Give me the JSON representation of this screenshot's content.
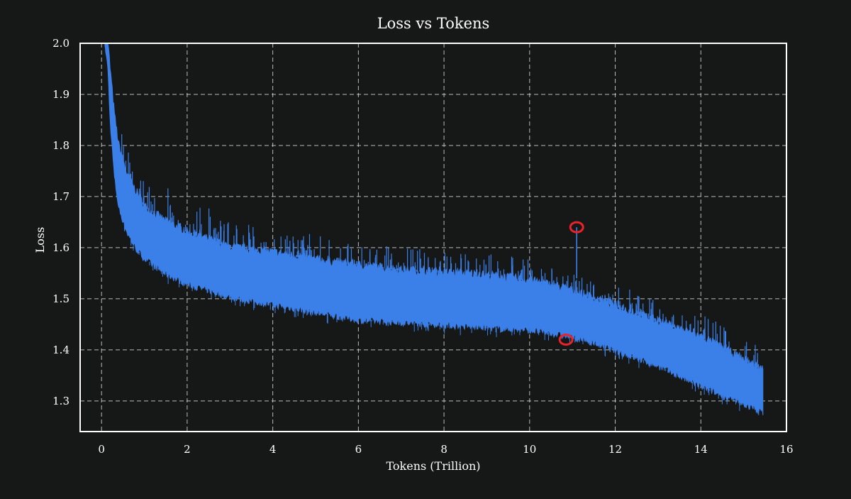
{
  "chart_data": {
    "type": "line",
    "title": "Loss vs Tokens",
    "xlabel": "Tokens (Trillion)",
    "ylabel": "Loss",
    "xlim": [
      -0.5,
      16
    ],
    "ylim": [
      1.24,
      2.0
    ],
    "xticks": [
      0,
      2,
      4,
      6,
      8,
      10,
      12,
      14,
      16
    ],
    "xtick_labels": [
      "0",
      "2",
      "4",
      "6",
      "8",
      "10",
      "12",
      "14",
      "16"
    ],
    "yticks": [
      1.3,
      1.4,
      1.5,
      1.6,
      1.7,
      1.8,
      1.9,
      2.0
    ],
    "ytick_labels": [
      "1.3",
      "1.4",
      "1.5",
      "1.6",
      "1.7",
      "1.8",
      "1.9",
      "2.0"
    ],
    "grid": true,
    "series": [
      {
        "name": "loss",
        "color": "#3b7fe8",
        "x": [
          0.08,
          0.15,
          0.2,
          0.3,
          0.4,
          0.6,
          0.8,
          1.0,
          1.5,
          2.0,
          3.0,
          4.0,
          5.0,
          6.0,
          7.0,
          8.0,
          9.0,
          10.0,
          10.8,
          11.5,
          12.0,
          13.0,
          14.0,
          15.0,
          15.45
        ],
        "lower": [
          2.0,
          1.95,
          1.85,
          1.74,
          1.68,
          1.63,
          1.6,
          1.58,
          1.55,
          1.53,
          1.505,
          1.49,
          1.475,
          1.46,
          1.455,
          1.45,
          1.445,
          1.44,
          1.43,
          1.415,
          1.4,
          1.37,
          1.33,
          1.295,
          1.28
        ],
        "upper": [
          2.0,
          2.0,
          1.95,
          1.86,
          1.8,
          1.74,
          1.71,
          1.68,
          1.65,
          1.63,
          1.6,
          1.59,
          1.575,
          1.565,
          1.555,
          1.55,
          1.545,
          1.535,
          1.52,
          1.5,
          1.485,
          1.455,
          1.425,
          1.38,
          1.36
        ],
        "spike_max": [
          2.0,
          2.0,
          2.0,
          1.92,
          1.85,
          1.8,
          1.76,
          1.74,
          1.72,
          1.69,
          1.665,
          1.64,
          1.625,
          1.61,
          1.6,
          1.595,
          1.59,
          1.58,
          1.56,
          1.54,
          1.53,
          1.5,
          1.47,
          1.43,
          1.41
        ]
      }
    ],
    "annotations": [
      {
        "type": "circle",
        "x": 11.1,
        "y": 1.64,
        "color": "#e8232a",
        "label": "spike"
      },
      {
        "type": "circle",
        "x": 10.85,
        "y": 1.42,
        "color": "#e8232a",
        "label": "dip"
      }
    ],
    "colors": {
      "background": "#161717",
      "axes": "#ffffff",
      "grid": "#d8d8d8",
      "text": "#ffffff"
    }
  }
}
